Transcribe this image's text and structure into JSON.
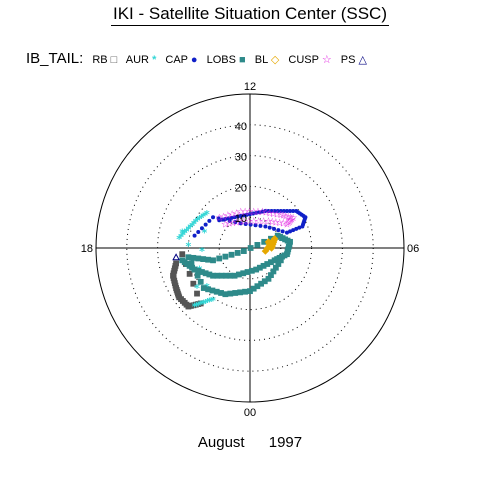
{
  "title": "IKI - Satellite Situation Center (SSC)",
  "legend": {
    "label": "IB_TAIL:",
    "items": [
      {
        "name": "RB",
        "symbol": "square",
        "color": "#555555"
      },
      {
        "name": "AUR",
        "symbol": "asterisk",
        "color": "#33d6d6"
      },
      {
        "name": "CAP",
        "symbol": "dot",
        "color": "#1020c8"
      },
      {
        "name": "LOBS",
        "symbol": "square",
        "color": "#2e8a8a"
      },
      {
        "name": "BL",
        "symbol": "diamond",
        "color": "#e6a800"
      },
      {
        "name": "CUSP",
        "symbol": "star",
        "color": "#e01ce0"
      },
      {
        "name": "PS",
        "symbol": "triangle",
        "color": "#000080"
      }
    ]
  },
  "chart_data": {
    "type": "scatter",
    "coordinate_system": "polar (magnetic local time vs. invariant colatitude)",
    "angular_labels": [
      "12",
      "18",
      "00",
      "06"
    ],
    "radial_ticks": [
      10,
      20,
      30,
      40
    ],
    "series": [
      {
        "name": "RB",
        "points": [
          [
            -24,
            -5
          ],
          [
            -25,
            -9
          ],
          [
            -24,
            -13
          ],
          [
            -23,
            -16
          ],
          [
            -20,
            -19
          ],
          [
            -16,
            -18
          ],
          [
            -22,
            -2
          ]
        ]
      },
      {
        "name": "AUR",
        "points": [
          [
            -23,
            3
          ],
          [
            -20,
            6
          ],
          [
            -17,
            9
          ],
          [
            -14,
            11
          ],
          [
            -18,
            -19
          ],
          [
            -15,
            -18
          ],
          [
            -12,
            -17
          ],
          [
            -22,
            5
          ]
        ]
      },
      {
        "name": "CAP",
        "points": [
          [
            -10,
            9
          ],
          [
            -5,
            10
          ],
          [
            0,
            11
          ],
          [
            5,
            12
          ],
          [
            10,
            12
          ],
          [
            15,
            12
          ],
          [
            18,
            10
          ],
          [
            17,
            7
          ],
          [
            12,
            5
          ],
          [
            5,
            7
          ],
          [
            -3,
            8
          ],
          [
            -12,
            10
          ],
          [
            -18,
            4
          ]
        ]
      },
      {
        "name": "LOBS",
        "points": [
          [
            -22,
            -4
          ],
          [
            -18,
            -7
          ],
          [
            -12,
            -9
          ],
          [
            -5,
            -9
          ],
          [
            2,
            -7
          ],
          [
            8,
            -4
          ],
          [
            12,
            -2
          ],
          [
            13,
            2
          ],
          [
            9,
            4
          ],
          [
            -2,
            -1
          ],
          [
            -12,
            -4
          ],
          [
            -20,
            -3
          ],
          [
            -15,
            -13
          ],
          [
            -8,
            -15
          ],
          [
            0,
            -14
          ],
          [
            6,
            -10
          ],
          [
            10,
            -4
          ]
        ]
      },
      {
        "name": "BL",
        "points": [
          [
            6,
            2
          ],
          [
            7,
            0
          ],
          [
            8,
            3
          ],
          [
            5,
            -1
          ]
        ]
      },
      {
        "name": "CUSP",
        "points": [
          [
            -10,
            10
          ],
          [
            -3,
            12
          ],
          [
            4,
            12
          ],
          [
            10,
            11
          ],
          [
            14,
            10
          ],
          [
            12,
            8
          ],
          [
            6,
            9
          ],
          [
            -2,
            9
          ],
          [
            -8,
            8
          ]
        ]
      },
      {
        "name": "PS",
        "points": [
          [
            -24,
            -3
          ]
        ]
      }
    ]
  },
  "footer": {
    "month": "August",
    "year": "1997"
  }
}
